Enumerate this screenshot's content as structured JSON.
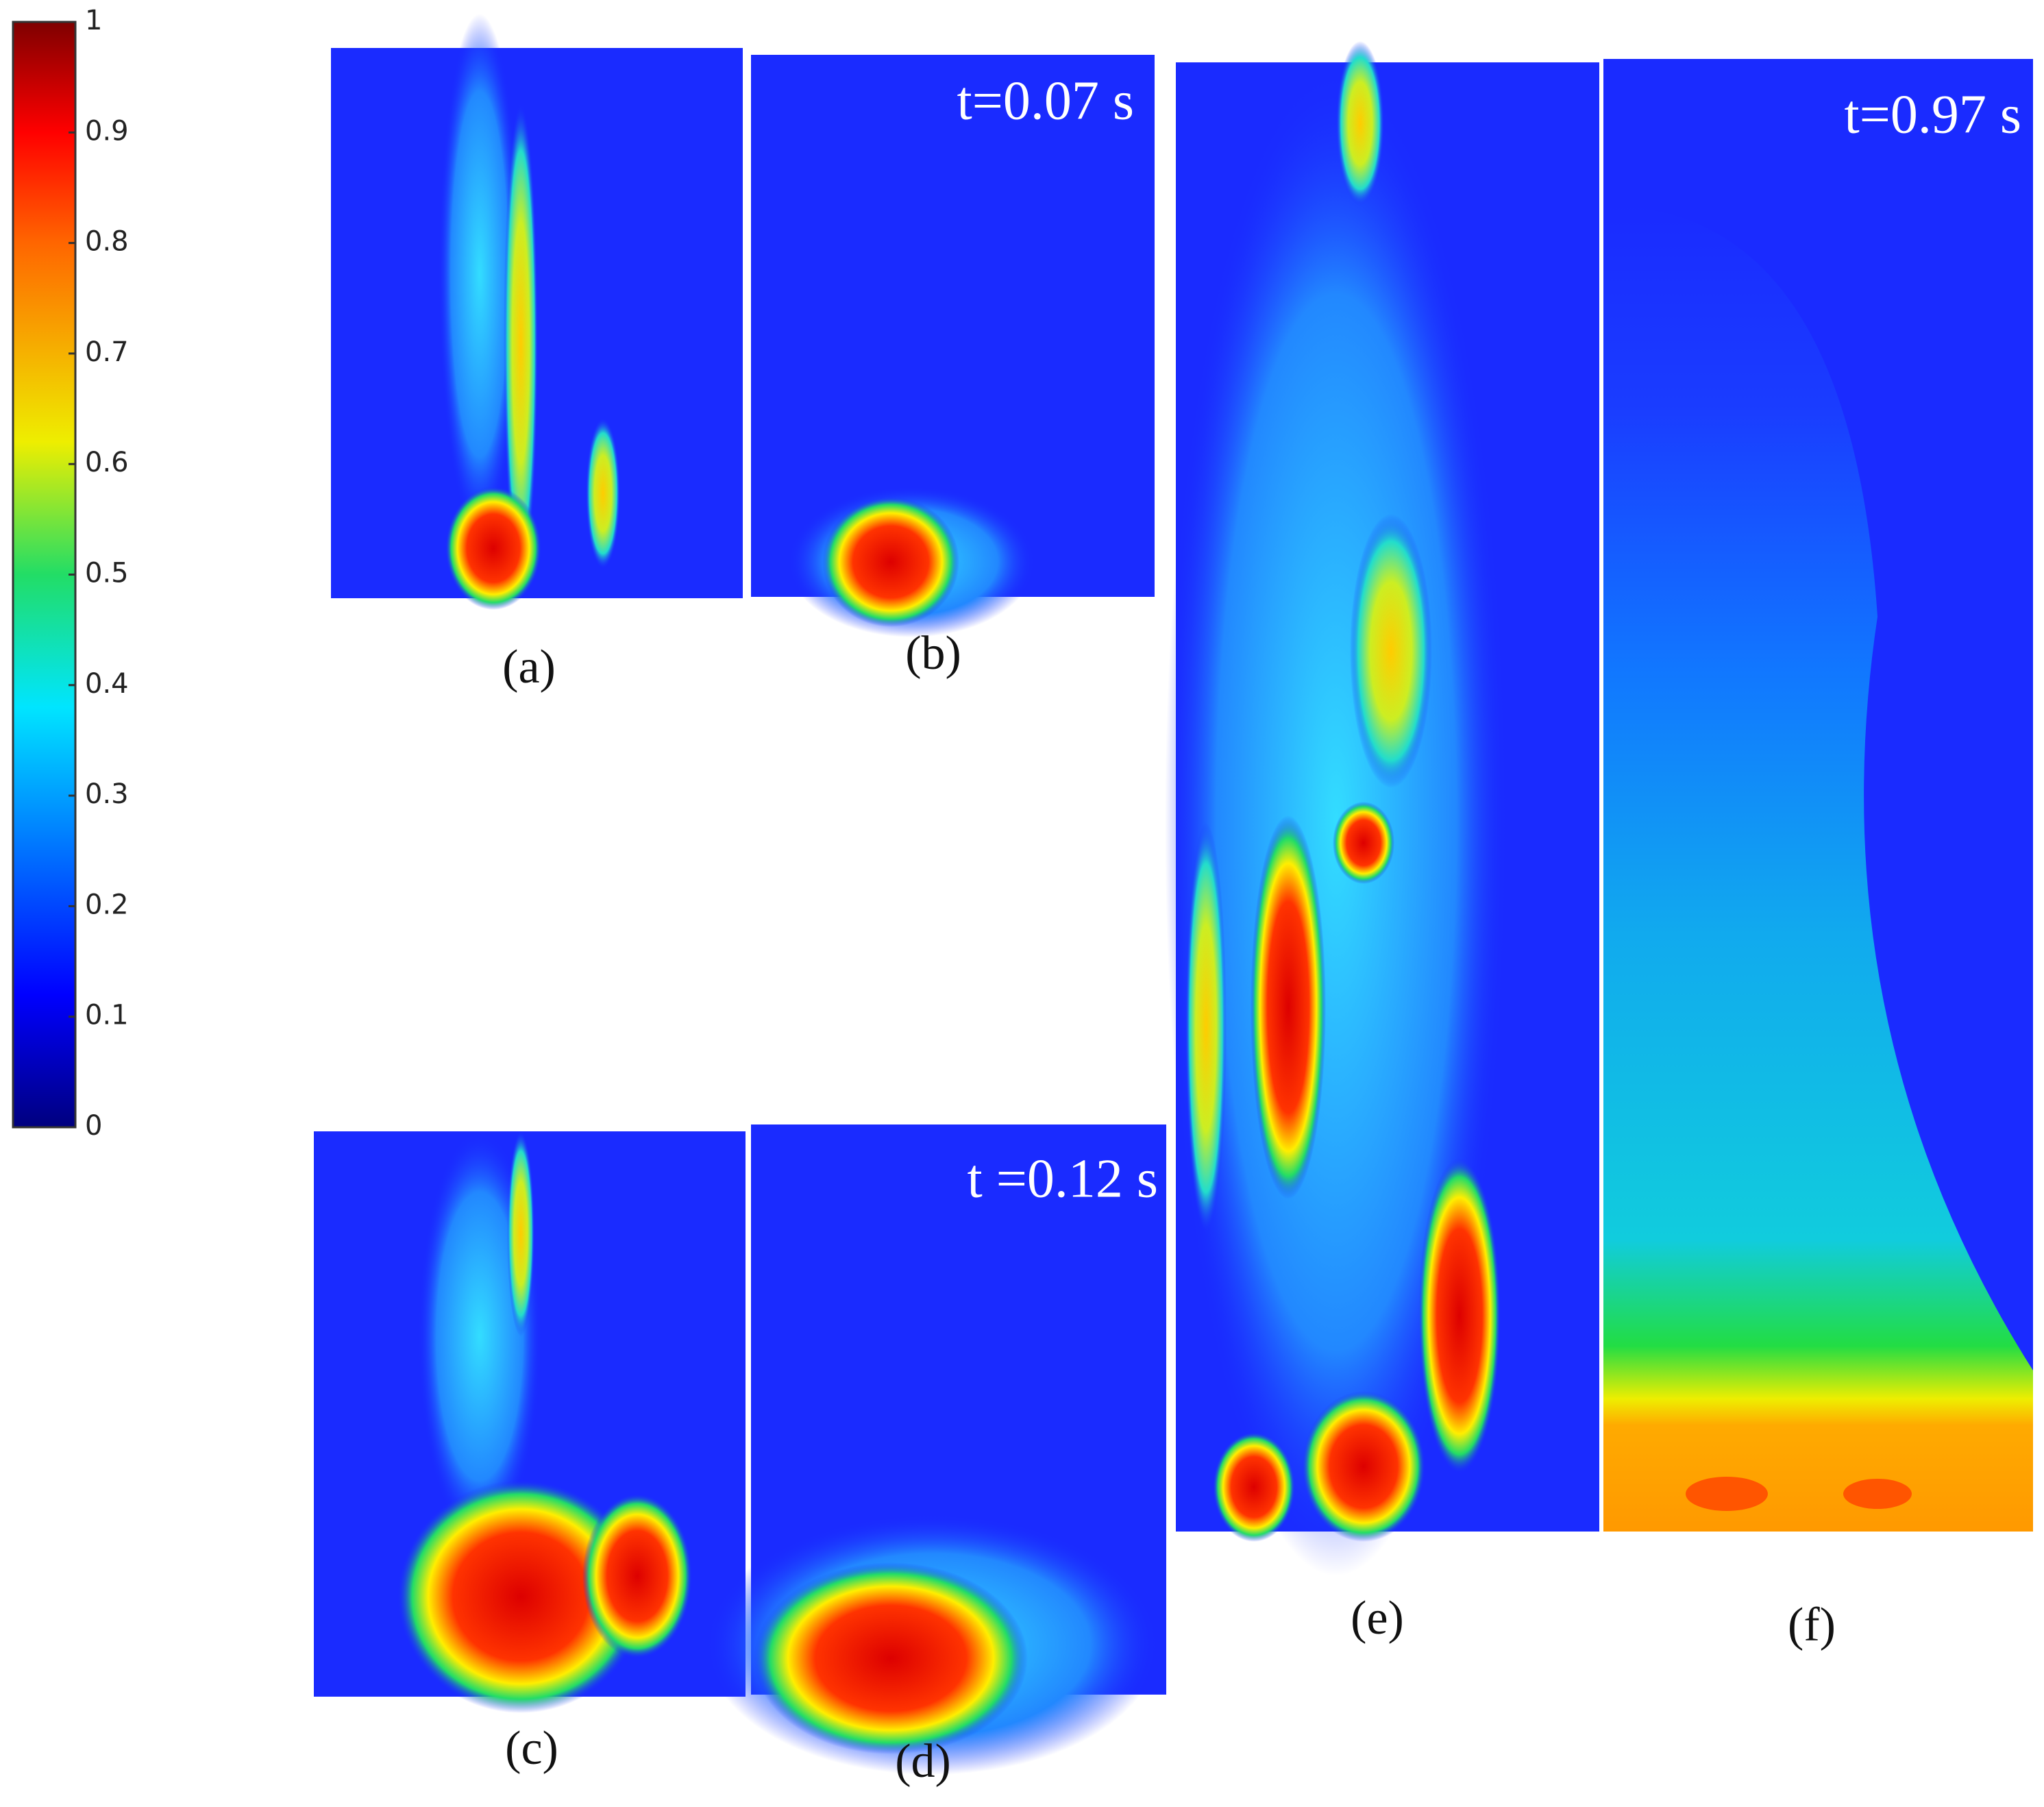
{
  "colorbar": {
    "ticks": [
      0,
      0.1,
      0.2,
      0.3,
      0.4,
      0.5,
      0.6,
      0.7,
      0.8,
      0.9,
      1
    ]
  },
  "panels": [
    {
      "label": "(a)"
    },
    {
      "label": "(b)",
      "time": "t=0.07 s"
    },
    {
      "label": "(c)"
    },
    {
      "label": "(d)",
      "time": "t =0.12 s"
    },
    {
      "label": "(e)"
    },
    {
      "label": "(f)",
      "time": "t=0.97 s"
    }
  ]
}
